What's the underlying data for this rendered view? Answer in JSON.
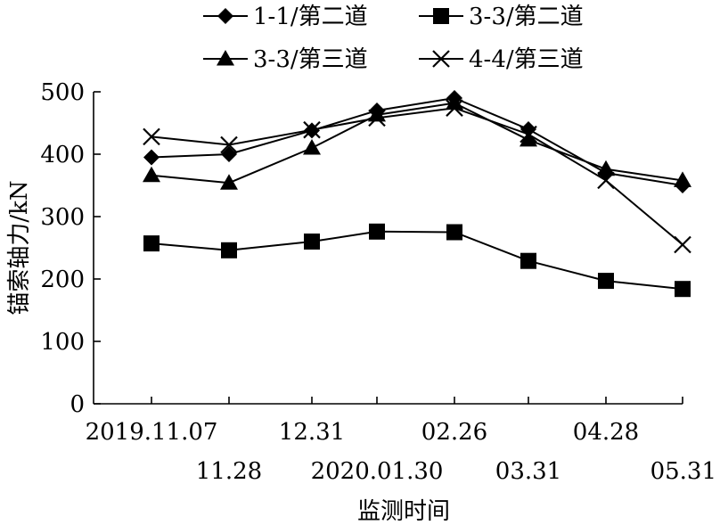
{
  "chart_data": {
    "type": "line",
    "title": "",
    "xlabel": "监测时间",
    "ylabel": "锚索轴力/kN",
    "ylim": [
      0,
      500
    ],
    "yticks": [
      "0",
      "100",
      "200",
      "300",
      "400",
      "500"
    ],
    "categories": [
      "2019.11.07",
      "11.28",
      "12.31",
      "2020.01.30",
      "02.26",
      "03.31",
      "04.28",
      "05.31"
    ],
    "x_tick_rows": [
      "upper",
      "lower",
      "upper",
      "lower",
      "upper",
      "lower",
      "upper",
      "lower"
    ],
    "grid": false,
    "legend_position": "top",
    "series": [
      {
        "name": "1-1/第二道",
        "marker": "diamond",
        "values": [
          395,
          400,
          438,
          470,
          490,
          440,
          370,
          350
        ]
      },
      {
        "name": "3-3/第二道",
        "marker": "square",
        "values": [
          257,
          246,
          260,
          276,
          275,
          229,
          197,
          184
        ]
      },
      {
        "name": "3-3/第三道",
        "marker": "triangle",
        "values": [
          366,
          354,
          410,
          463,
          482,
          423,
          376,
          358
        ]
      },
      {
        "name": "4-4/第三道",
        "marker": "x",
        "values": [
          428,
          415,
          439,
          458,
          474,
          432,
          358,
          255
        ]
      }
    ]
  }
}
